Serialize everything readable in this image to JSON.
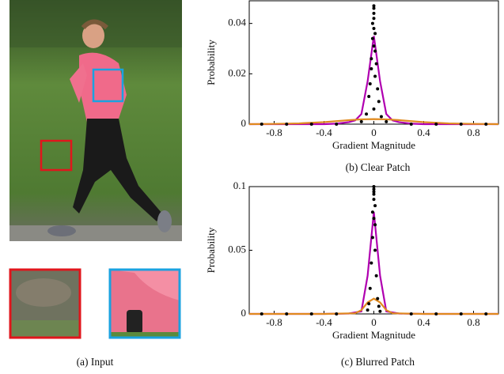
{
  "input_caption": "(a) Input",
  "chart_data": [
    {
      "type": "scatter",
      "caption": "(b) Clear Patch",
      "xlabel": "Gradient Magnitude",
      "ylabel": "Probability",
      "xlim": [
        -1,
        1
      ],
      "ylim": [
        0,
        0.049
      ],
      "xticks": [
        -0.8,
        -0.4,
        0,
        0.4,
        0.8
      ],
      "yticks": [
        0,
        0.02,
        0.04
      ],
      "points": {
        "color": "#000000",
        "x": [
          0,
          0,
          0,
          0,
          -0.01,
          0,
          0.01,
          -0.01,
          0,
          0.01,
          -0.02,
          0.02,
          -0.02,
          0.01,
          -0.03,
          0.03,
          -0.04,
          0.04,
          0,
          -0.06,
          0.06,
          -0.1,
          0.1,
          -0.9,
          -0.7,
          -0.5,
          -0.3,
          0.3,
          0.5,
          0.7,
          0.9
        ],
        "y": [
          0.047,
          0.046,
          0.044,
          0.042,
          0.04,
          0.038,
          0.036,
          0.034,
          0.031,
          0.029,
          0.026,
          0.024,
          0.022,
          0.019,
          0.016,
          0.014,
          0.011,
          0.009,
          0.006,
          0.004,
          0.003,
          0.001,
          0.001,
          0,
          0,
          0,
          0,
          0,
          0,
          0,
          0
        ]
      },
      "lines": [
        {
          "color": "#b000b0",
          "x": [
            -1,
            -0.8,
            -0.6,
            -0.4,
            -0.3,
            -0.2,
            -0.15,
            -0.1,
            -0.05,
            0,
            0.05,
            0.1,
            0.15,
            0.2,
            0.3,
            0.4,
            0.6,
            0.8,
            1
          ],
          "values": [
            0,
            0,
            0,
            0,
            0.0002,
            0.0008,
            0.0015,
            0.004,
            0.017,
            0.035,
            0.017,
            0.004,
            0.0015,
            0.0008,
            0.0002,
            0,
            0,
            0,
            0
          ]
        },
        {
          "color": "#e08a1e",
          "x": [
            -1,
            -0.8,
            -0.6,
            -0.4,
            -0.3,
            -0.2,
            -0.1,
            0,
            0.1,
            0.2,
            0.3,
            0.4,
            0.6,
            0.8,
            1
          ],
          "values": [
            0,
            0.0001,
            0.0003,
            0.0008,
            0.0012,
            0.0016,
            0.0019,
            0.002,
            0.0019,
            0.0016,
            0.0012,
            0.0008,
            0.0003,
            0.0001,
            0
          ]
        }
      ]
    },
    {
      "type": "scatter",
      "caption": "(c) Blurred Patch",
      "xlabel": "Gradient Magnitude",
      "ylabel": "Probability",
      "xlim": [
        -1,
        1
      ],
      "ylim": [
        0,
        0.1
      ],
      "xticks": [
        -0.8,
        -0.4,
        0,
        0.4,
        0.8
      ],
      "yticks": [
        0,
        0.05,
        0.1
      ],
      "points": {
        "color": "#000000",
        "x": [
          0,
          0,
          0,
          0,
          0,
          0.01,
          -0.01,
          0,
          0.01,
          -0.01,
          0.01,
          -0.02,
          0.02,
          -0.03,
          0.03,
          -0.04,
          0.04,
          -0.05,
          0.05,
          -0.9,
          -0.7,
          -0.5,
          -0.3,
          0.3,
          0.5,
          0.7,
          0.9
        ],
        "y": [
          0.1,
          0.098,
          0.096,
          0.094,
          0.09,
          0.085,
          0.08,
          0.075,
          0.07,
          0.06,
          0.05,
          0.04,
          0.03,
          0.02,
          0.012,
          0.008,
          0.006,
          0.003,
          0.002,
          0,
          0,
          0,
          0,
          0,
          0,
          0,
          0
        ]
      },
      "lines": [
        {
          "color": "#b000b0",
          "x": [
            -1,
            -0.4,
            -0.2,
            -0.1,
            -0.05,
            0,
            0.05,
            0.1,
            0.2,
            0.4,
            1
          ],
          "values": [
            0,
            0,
            0.0003,
            0.002,
            0.03,
            0.08,
            0.03,
            0.002,
            0.0003,
            0,
            0
          ]
        },
        {
          "color": "#e08a1e",
          "x": [
            -1,
            -0.4,
            -0.15,
            -0.1,
            -0.05,
            0,
            0.05,
            0.1,
            0.15,
            0.4,
            1
          ],
          "values": [
            0,
            0,
            0.0005,
            0.003,
            0.009,
            0.012,
            0.009,
            0.003,
            0.0005,
            0,
            0
          ]
        }
      ]
    }
  ]
}
